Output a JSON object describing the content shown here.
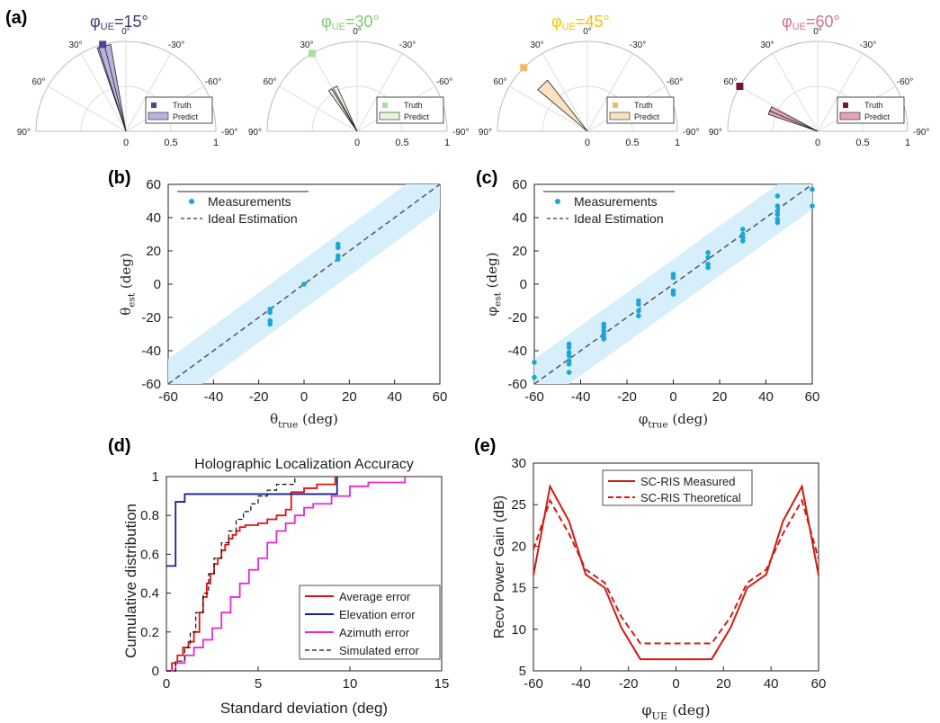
{
  "panels": {
    "a": {
      "label": "(a)",
      "polar": [
        {
          "title_prefix": "φ",
          "title_sub": "UE",
          "title_value": "=15°",
          "title_color": "#3d3b77",
          "truth_angle": 15,
          "predict": [
            [
              10,
              19
            ],
            [
              14,
              18
            ]
          ],
          "color": "#b9b3e0",
          "truth_color": "#4b4693"
        },
        {
          "title_prefix": "φ",
          "title_sub": "UE",
          "title_value": "=30°",
          "title_color": "#7ccc6e",
          "truth_angle": 30,
          "predict": [
            [
              24,
              29
            ],
            [
              31,
              35
            ]
          ],
          "color": "#e6f5d8",
          "truth_color": "#a9e19a"
        },
        {
          "title_prefix": "φ",
          "title_sub": "UE",
          "title_value": "=45°",
          "title_color": "#f2c300",
          "truth_angle": 45,
          "predict": [
            [
              38,
              50
            ]
          ],
          "color": "#f9e2bf",
          "truth_color": "#f0b86a"
        },
        {
          "title_prefix": "φ",
          "title_sub": "UE",
          "title_value": "=60°",
          "title_color": "#d0718e",
          "truth_angle": 60,
          "predict": [
            [
              62,
              68
            ],
            [
              67,
              71
            ]
          ],
          "color": "#e4a4b8",
          "truth_color": "#7b1235"
        }
      ],
      "angle_labels": [
        "0°",
        "30°",
        "-30°",
        "60°",
        "-60°",
        "90°",
        "-90°"
      ],
      "radial_labels": [
        "0",
        "0.5",
        "1"
      ],
      "legend": [
        "Truth",
        "Predict"
      ]
    },
    "b": {
      "label": "(b)"
    },
    "c": {
      "label": "(c)"
    },
    "d": {
      "label": "(d)"
    },
    "e": {
      "label": "(e)"
    }
  },
  "chart_data": [
    {
      "type": "scatter",
      "panel": "b",
      "xlabel": "θtrue (deg)",
      "ylabel": "θest (deg)",
      "xlim": [
        -60,
        60
      ],
      "ylim": [
        -60,
        60
      ],
      "xticks": [
        -60,
        -40,
        -20,
        0,
        20,
        40,
        60
      ],
      "yticks": [
        -60,
        -40,
        -20,
        0,
        20,
        40,
        60
      ],
      "band": 15,
      "legend": [
        "Measurements",
        "Ideal Estimation"
      ],
      "points": [
        [
          -15,
          -15
        ],
        [
          -15,
          -17
        ],
        [
          -15,
          -22
        ],
        [
          -15,
          -24
        ],
        [
          0,
          0
        ],
        [
          15,
          15
        ],
        [
          15,
          17
        ],
        [
          15,
          22
        ],
        [
          15,
          24
        ]
      ]
    },
    {
      "type": "scatter",
      "panel": "c",
      "xlabel": "φtrue (deg)",
      "ylabel": "φest (deg)",
      "xlim": [
        -60,
        60
      ],
      "ylim": [
        -60,
        60
      ],
      "xticks": [
        -60,
        -40,
        -20,
        0,
        20,
        40,
        60
      ],
      "yticks": [
        -60,
        -40,
        -20,
        0,
        20,
        40,
        60
      ],
      "band": 15,
      "legend": [
        "Measurements",
        "Ideal Estimation"
      ],
      "points": [
        [
          -60,
          -47
        ],
        [
          -60,
          -56
        ],
        [
          -45,
          -36
        ],
        [
          -45,
          -38
        ],
        [
          -45,
          -41
        ],
        [
          -45,
          -43
        ],
        [
          -45,
          -46
        ],
        [
          -45,
          -48
        ],
        [
          -45,
          -53
        ],
        [
          -30,
          -24
        ],
        [
          -30,
          -26
        ],
        [
          -30,
          -28
        ],
        [
          -30,
          -30
        ],
        [
          -30,
          -32
        ],
        [
          -30,
          -33
        ],
        [
          -15,
          -10
        ],
        [
          -15,
          -12
        ],
        [
          -15,
          -16
        ],
        [
          -15,
          -19
        ],
        [
          0,
          6
        ],
        [
          0,
          4
        ],
        [
          0,
          -4
        ],
        [
          0,
          -6
        ],
        [
          15,
          19
        ],
        [
          15,
          16
        ],
        [
          15,
          12
        ],
        [
          15,
          10
        ],
        [
          30,
          33
        ],
        [
          30,
          30
        ],
        [
          30,
          28
        ],
        [
          30,
          26
        ],
        [
          45,
          53
        ],
        [
          45,
          47
        ],
        [
          45,
          44
        ],
        [
          45,
          42
        ],
        [
          45,
          39
        ],
        [
          45,
          37
        ],
        [
          60,
          57
        ],
        [
          60,
          47
        ]
      ]
    },
    {
      "type": "line",
      "panel": "d",
      "title": "Holographic Localization Accuracy",
      "xlabel": "Standard deviation (deg)",
      "ylabel": "Cumulative distribution",
      "xlim": [
        0,
        15
      ],
      "ylim": [
        0,
        1
      ],
      "xticks": [
        0,
        5,
        10,
        15
      ],
      "yticks": [
        0,
        0.2,
        0.4,
        0.6,
        0.8,
        1
      ],
      "series": [
        {
          "name": "Average error",
          "color": "#e0140e",
          "x": [
            0,
            0.3,
            0.6,
            0.9,
            1.2,
            1.5,
            1.8,
            2.0,
            2.2,
            2.4,
            2.6,
            2.8,
            3.0,
            3.2,
            3.4,
            3.6,
            3.8,
            4.0,
            4.3,
            4.6,
            5.0,
            5.5,
            6.0,
            6.5,
            6.8,
            7.5,
            8.2,
            9.2
          ],
          "y": [
            0,
            0.04,
            0.08,
            0.12,
            0.15,
            0.2,
            0.3,
            0.38,
            0.45,
            0.5,
            0.55,
            0.58,
            0.62,
            0.65,
            0.68,
            0.7,
            0.72,
            0.74,
            0.75,
            0.75,
            0.76,
            0.78,
            0.8,
            0.83,
            0.92,
            0.94,
            0.96,
            1.0
          ]
        },
        {
          "name": "Elevation error",
          "color": "#13209a",
          "x": [
            0,
            0.5,
            0.5,
            1.0,
            1.0,
            9.3,
            9.3
          ],
          "y": [
            0.54,
            0.54,
            0.87,
            0.87,
            0.91,
            0.91,
            1.0
          ]
        },
        {
          "name": "Azimuth error",
          "color": "#e829d2",
          "x": [
            0,
            0.5,
            1.0,
            1.5,
            2.0,
            2.5,
            3.0,
            3.5,
            4.0,
            4.5,
            5.0,
            5.5,
            6.0,
            6.5,
            7.0,
            7.5,
            8.0,
            9.0,
            10.0,
            11.0,
            13.0
          ],
          "y": [
            0,
            0.04,
            0.08,
            0.12,
            0.16,
            0.22,
            0.3,
            0.38,
            0.45,
            0.52,
            0.58,
            0.66,
            0.72,
            0.76,
            0.8,
            0.84,
            0.86,
            0.9,
            0.95,
            0.97,
            1.0
          ]
        },
        {
          "name": "Simulated error",
          "color": "#111111",
          "dash": true,
          "x": [
            0,
            0.5,
            1.0,
            1.3,
            1.6,
            2.0,
            2.3,
            2.6,
            3.0,
            3.4,
            3.8,
            4.2,
            4.6,
            5.0,
            5.5,
            6.0,
            7.0
          ],
          "y": [
            0,
            0.05,
            0.12,
            0.2,
            0.3,
            0.4,
            0.5,
            0.58,
            0.66,
            0.72,
            0.78,
            0.82,
            0.86,
            0.9,
            0.93,
            0.96,
            1.0
          ]
        }
      ]
    },
    {
      "type": "line",
      "panel": "e",
      "xlabel": "φUE (deg)",
      "ylabel": "Recv Power Gain (dB)",
      "xlim": [
        -60,
        60
      ],
      "ylim": [
        5,
        30
      ],
      "xticks": [
        -60,
        -40,
        -20,
        0,
        20,
        40,
        60
      ],
      "yticks": [
        5,
        10,
        15,
        20,
        25,
        30
      ],
      "series": [
        {
          "name": "SC-RIS Measured",
          "color": "#d11c12",
          "x": [
            -60,
            -53,
            -45,
            -38,
            -30,
            -23,
            -15,
            0,
            15,
            23,
            30,
            38,
            45,
            53,
            60
          ],
          "y": [
            16.5,
            27.2,
            23,
            16.6,
            15,
            10.2,
            6.4,
            6.4,
            6.4,
            10.2,
            15,
            16.6,
            23,
            27.2,
            16.5
          ]
        },
        {
          "name": "SC-RIS Theoretical",
          "color": "#d11c12",
          "dash": true,
          "x": [
            -60,
            -53,
            -45,
            -38,
            -30,
            -23,
            -15,
            0,
            15,
            23,
            30,
            38,
            45,
            53,
            60
          ],
          "y": [
            19.6,
            25.5,
            21.5,
            17.2,
            15.6,
            11.5,
            8.3,
            8.3,
            8.3,
            11.5,
            15.6,
            17.2,
            21.5,
            25.5,
            18.5
          ]
        }
      ]
    }
  ]
}
